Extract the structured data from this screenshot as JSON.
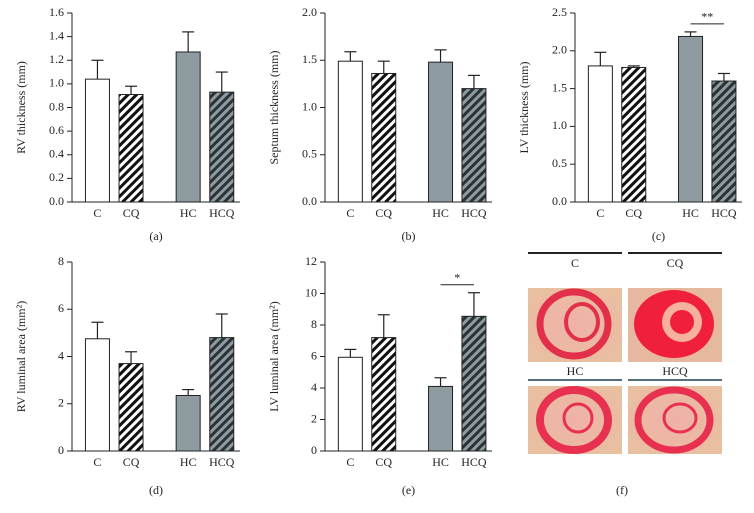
{
  "chart_data": [
    {
      "type": "bar",
      "ylabel": "RV thickness (mm)",
      "caption": "(a)",
      "categories": [
        "C",
        "CQ",
        "HC",
        "HCQ"
      ],
      "values": [
        1.04,
        0.91,
        1.27,
        0.93
      ],
      "errors": [
        0.16,
        0.07,
        0.17,
        0.17
      ],
      "colors": [
        "#ffffff",
        "#ffffff",
        "#8e9ca2",
        "#8e9ca2"
      ],
      "hatch": [
        false,
        true,
        false,
        true
      ],
      "ylim": [
        0,
        1.6
      ],
      "yticks": [
        {
          "value": 0,
          "label": "0.0"
        },
        {
          "value": 0.2,
          "label": "0.2"
        },
        {
          "value": 0.4,
          "label": "0.4"
        },
        {
          "value": 0.6,
          "label": "0.6"
        },
        {
          "value": 0.8,
          "label": "0.8"
        },
        {
          "value": 1,
          "label": "1.0"
        },
        {
          "value": 1.2,
          "label": "1.2"
        },
        {
          "value": 1.4,
          "label": "1.4"
        },
        {
          "value": 1.6,
          "label": "1.6"
        }
      ]
    },
    {
      "type": "bar",
      "ylabel": "Septum thickness (mm)",
      "caption": "(b)",
      "categories": [
        "C",
        "CQ",
        "HC",
        "HCQ"
      ],
      "values": [
        1.49,
        1.36,
        1.48,
        1.2
      ],
      "errors": [
        0.1,
        0.13,
        0.13,
        0.14
      ],
      "colors": [
        "#ffffff",
        "#ffffff",
        "#8e9ca2",
        "#8e9ca2"
      ],
      "hatch": [
        false,
        true,
        false,
        true
      ],
      "ylim": [
        0,
        2
      ],
      "yticks": [
        {
          "value": 0,
          "label": "0.0"
        },
        {
          "value": 0.5,
          "label": "0.5"
        },
        {
          "value": 1,
          "label": "1.0"
        },
        {
          "value": 1.5,
          "label": "1.5"
        },
        {
          "value": 2,
          "label": "2.0"
        }
      ]
    },
    {
      "type": "bar",
      "ylabel": "LV thickness (mm)",
      "caption": "(c)",
      "categories": [
        "C",
        "CQ",
        "HC",
        "HCQ"
      ],
      "values": [
        1.8,
        1.78,
        2.19,
        1.6
      ],
      "errors": [
        0.18,
        0.02,
        0.06,
        0.1
      ],
      "colors": [
        "#ffffff",
        "#ffffff",
        "#8e9ca2",
        "#8e9ca2"
      ],
      "hatch": [
        false,
        true,
        false,
        true
      ],
      "ylim": [
        0,
        2.5
      ],
      "yticks": [
        {
          "value": 0,
          "label": "0.0"
        },
        {
          "value": 0.5,
          "label": "0.5"
        },
        {
          "value": 1,
          "label": "1.0"
        },
        {
          "value": 1.5,
          "label": "1.5"
        },
        {
          "value": 2,
          "label": "2.0"
        },
        {
          "value": 2.5,
          "label": "2.5"
        }
      ],
      "annotation": "**"
    },
    {
      "type": "bar",
      "ylabel": "RV luminal area (mm²)",
      "caption": "(d)",
      "categories": [
        "C",
        "CQ",
        "HC",
        "HCQ"
      ],
      "values": [
        4.75,
        3.7,
        2.35,
        4.8
      ],
      "errors": [
        0.7,
        0.5,
        0.25,
        1.0
      ],
      "colors": [
        "#ffffff",
        "#ffffff",
        "#8e9ca2",
        "#8e9ca2"
      ],
      "hatch": [
        false,
        true,
        false,
        true
      ],
      "ylim": [
        0,
        8
      ],
      "yticks": [
        0,
        2,
        4,
        6,
        8
      ]
    },
    {
      "type": "bar",
      "ylabel": "LV luminal area (mm²)",
      "caption": "(e)",
      "categories": [
        "C",
        "CQ",
        "HC",
        "HCQ"
      ],
      "values": [
        5.95,
        7.2,
        4.1,
        8.55
      ],
      "errors": [
        0.5,
        1.45,
        0.55,
        1.5
      ],
      "colors": [
        "#ffffff",
        "#ffffff",
        "#8e9ca2",
        "#8e9ca2"
      ],
      "hatch": [
        false,
        true,
        false,
        true
      ],
      "ylim": [
        0,
        12
      ],
      "yticks": [
        0,
        2,
        4,
        6,
        8,
        10,
        12
      ],
      "annotation": "*"
    }
  ],
  "image_panel": {
    "labels": [
      "C",
      "CQ",
      "HC",
      "HCQ"
    ],
    "caption": "(f)"
  }
}
